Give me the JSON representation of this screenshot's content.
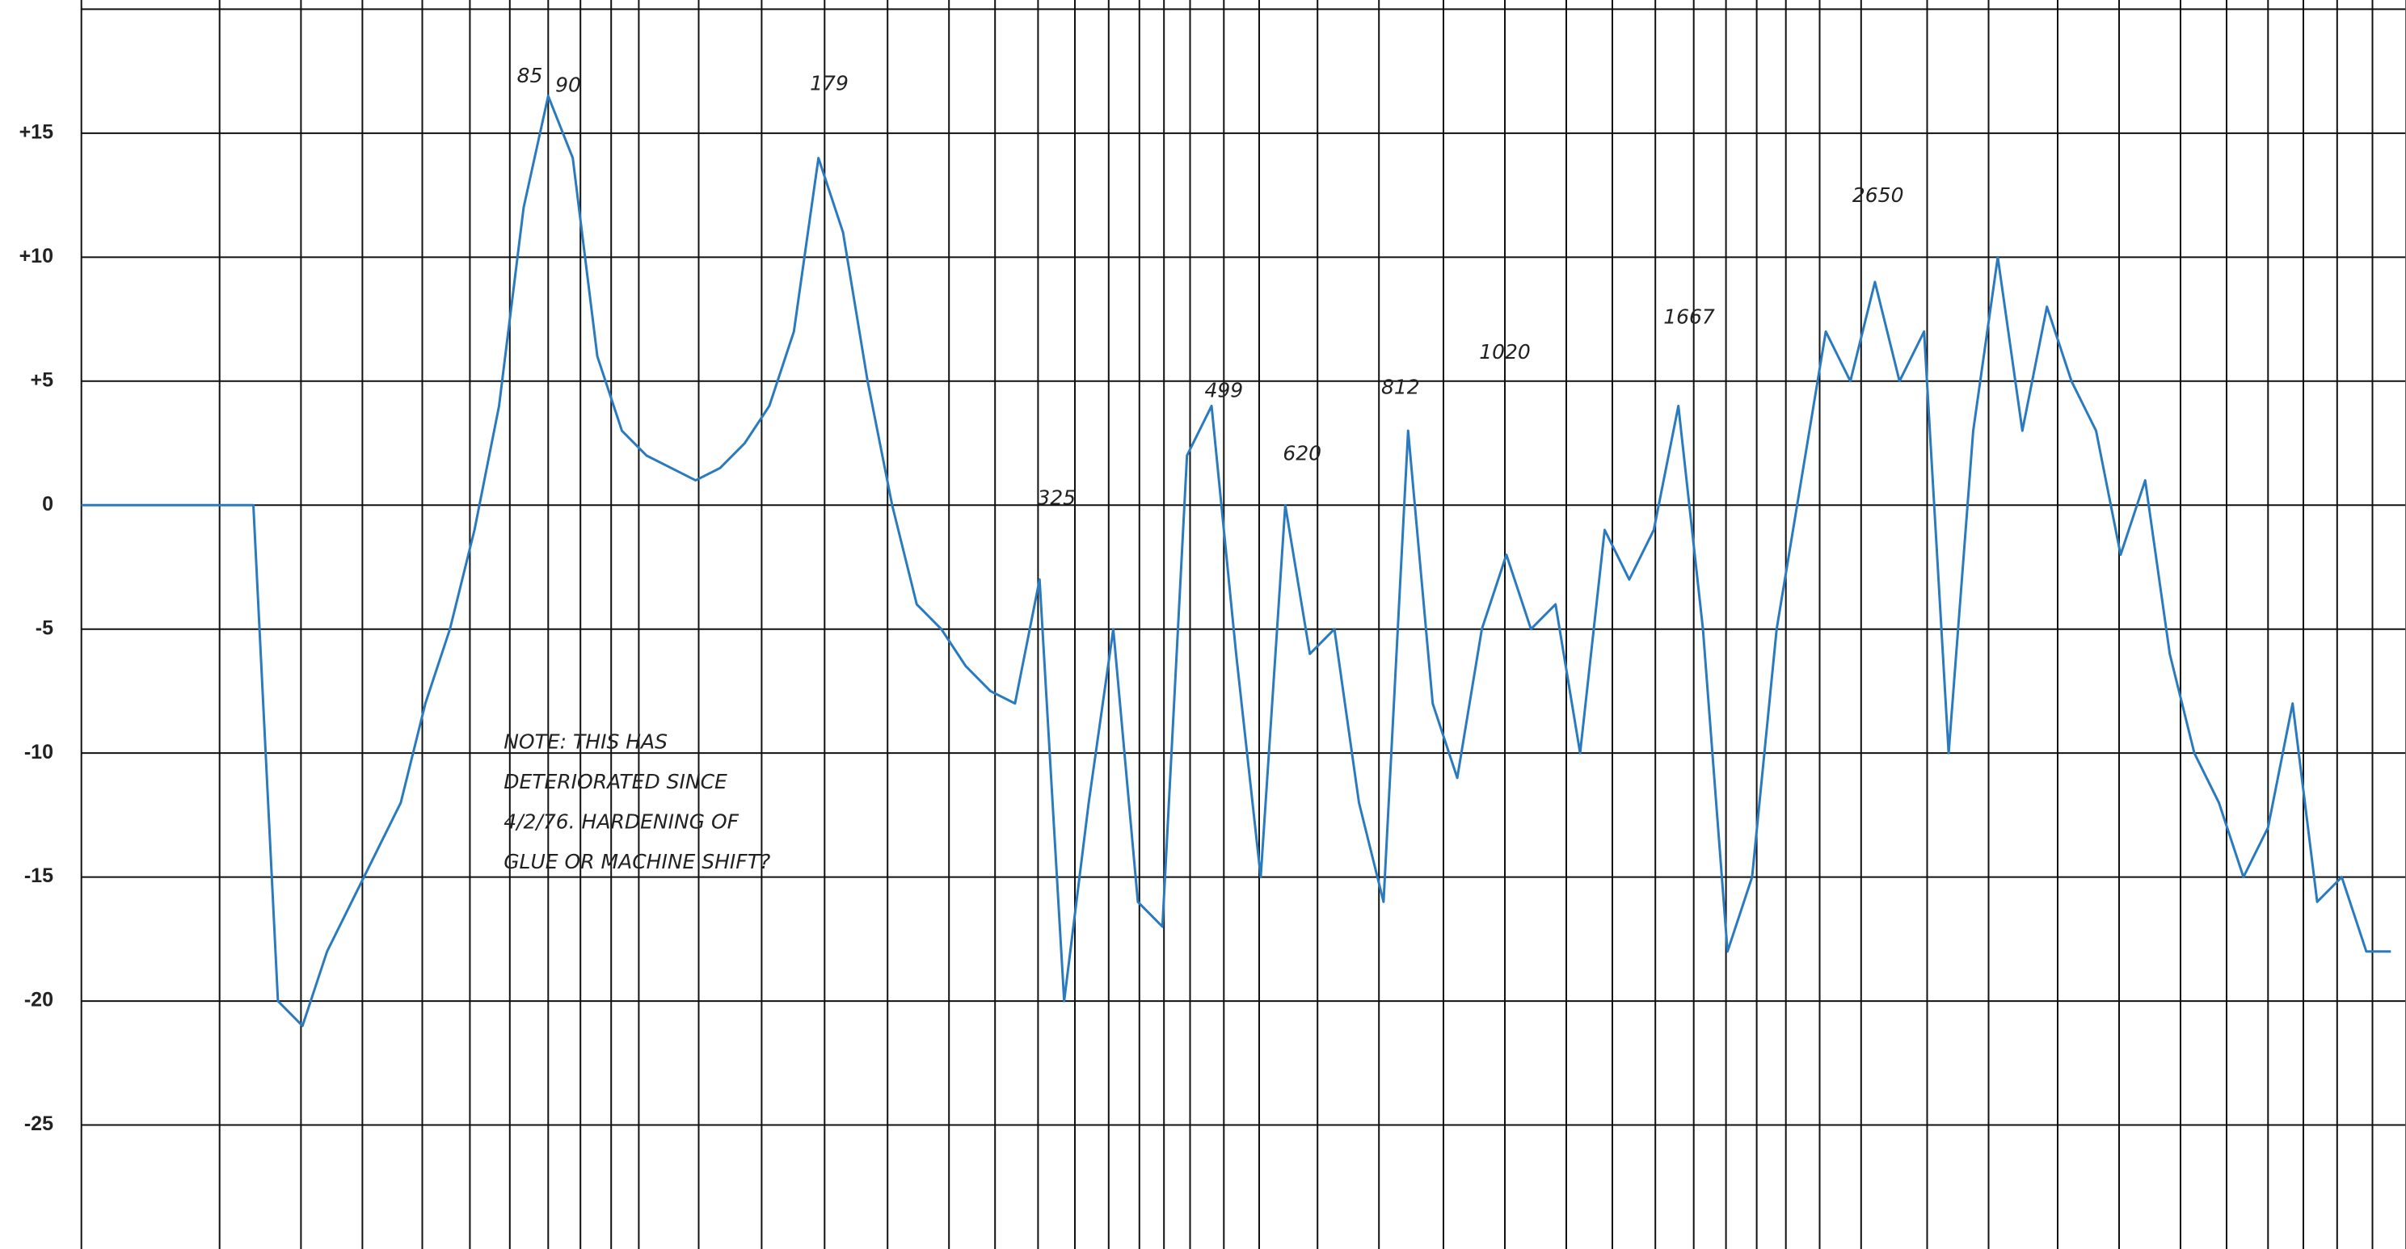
{
  "chart_data": {
    "type": "line",
    "categories": [
      null,
      null,
      null,
      null,
      null,
      null,
      null,
      null,
      null,
      null,
      null,
      null,
      null,
      null,
      null,
      null,
      null,
      null,
      null,
      null,
      null,
      null,
      null,
      null,
      null,
      null,
      null,
      null,
      null,
      null,
      null,
      null,
      null,
      null,
      null,
      null,
      null,
      null,
      null,
      null,
      null,
      null,
      null,
      null,
      null,
      null,
      null,
      null,
      null,
      null,
      null,
      null,
      null,
      null,
      null,
      null,
      null,
      null,
      null,
      null,
      null,
      null,
      null,
      null,
      null,
      null,
      null,
      null,
      null,
      null,
      null,
      null,
      null,
      null,
      null,
      null,
      null,
      null,
      null,
      null,
      null,
      null,
      null,
      null,
      null,
      null,
      null,
      null,
      null,
      null,
      null,
      null,
      null,
      null,
      null
    ],
    "values": [
      0,
      0,
      0,
      0,
      0,
      0,
      0,
      0,
      -20,
      -21,
      -18,
      -16,
      -14,
      -12,
      -8,
      -5,
      -1,
      4,
      12,
      16.5,
      14,
      6,
      3,
      2,
      1.5,
      1,
      1.5,
      2.5,
      4,
      7,
      14,
      11,
      5,
      0,
      -4,
      -5,
      -6.5,
      -7.5,
      -8,
      -3,
      -20,
      -12,
      -5,
      -16,
      -17,
      2,
      4,
      -6,
      -15,
      0,
      -6,
      -5,
      -12,
      -16,
      3,
      -8,
      -11,
      -5,
      -2,
      -5,
      -4,
      -10,
      -1,
      -3,
      -1,
      4,
      -5,
      -18,
      -15,
      -5,
      1,
      7,
      5,
      9,
      5,
      7,
      -10,
      3,
      10,
      3,
      8,
      5,
      3,
      -2,
      1,
      -6,
      -10,
      -12,
      -15,
      -13,
      -8,
      -16,
      -15,
      -18,
      -18
    ],
    "color": "#2a7ac0",
    "ylim": [
      -30,
      20
    ],
    "yticks": [
      -25,
      -20,
      -15,
      -10,
      -5,
      0,
      {
        "value": 5,
        "label": "+5"
      },
      {
        "value": 10,
        "label": "+10"
      },
      {
        "value": 15,
        "label": "+15"
      }
    ],
    "grid": true,
    "annotations": [
      "85",
      "90",
      "179",
      "325",
      "499",
      "620",
      "812",
      "1020",
      "1667",
      "2650"
    ],
    "note": [
      "NOTE:  THIS HAS",
      "DETERIORATED SINCE",
      "4/2/76. HARDENING OF",
      "GLUE OR MACHINE SHIFT?"
    ]
  }
}
